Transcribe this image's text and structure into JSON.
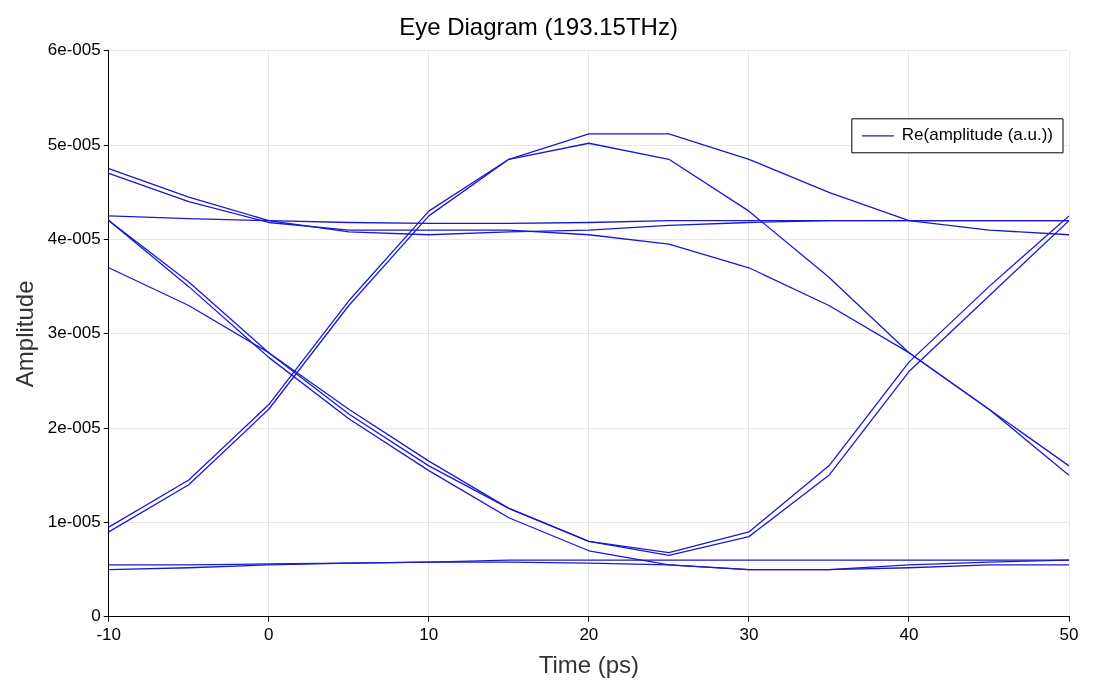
{
  "chart_data": {
    "type": "line",
    "title": "Eye Diagram (193.15THz)",
    "xlabel": "Time (ps)",
    "ylabel": "Amplitude",
    "x": [
      -10,
      -5,
      0,
      5,
      10,
      15,
      20,
      25,
      30,
      35,
      40,
      45,
      50
    ],
    "xlim": [
      -10,
      50
    ],
    "xticks": [
      -10,
      0,
      10,
      20,
      30,
      40,
      50
    ],
    "ylim": [
      0,
      6e-05
    ],
    "yticks": [
      0,
      {
        "value": 1e-05,
        "label": "1e-005"
      },
      {
        "value": 2e-05,
        "label": "2e-005"
      },
      {
        "value": 3e-05,
        "label": "3e-005"
      },
      {
        "value": 4e-05,
        "label": "4e-005"
      },
      {
        "value": 5e-05,
        "label": "5e-005"
      },
      {
        "value": 6e-05,
        "label": "6e-005"
      }
    ],
    "grid": true,
    "legend": "top right",
    "marker": "none",
    "line_style": "solid",
    "series": [
      {
        "name": "Re(amplitude (a.u.))",
        "color": "#1a1acc",
        "values": [
          9e-06,
          1.4e-05,
          2.2e-05,
          3.3e-05,
          4.25e-05,
          4.85e-05,
          5.12e-05,
          5.12e-05,
          4.85e-05,
          4.5e-05,
          4.2e-05,
          4.1e-05,
          4.05e-05
        ]
      },
      {
        "color": "#1a1acc",
        "values": [
          9.5e-06,
          1.45e-05,
          2.25e-05,
          3.35e-05,
          4.3e-05,
          4.85e-05,
          5.02e-05,
          4.85e-05,
          4.3e-05,
          3.6e-05,
          2.8e-05,
          2.2e-05,
          1.5e-05
        ]
      },
      {
        "color": "#1a1acc",
        "values": [
          4.75e-05,
          4.45e-05,
          4.2e-05,
          4.08e-05,
          4.05e-05,
          4.08e-05,
          4.1e-05,
          4.15e-05,
          4.18e-05,
          4.2e-05,
          4.2e-05,
          4.2e-05,
          4.2e-05
        ]
      },
      {
        "color": "#1a1acc",
        "values": [
          4.7e-05,
          4.4e-05,
          4.18e-05,
          4.1e-05,
          4.1e-05,
          4.1e-05,
          4.05e-05,
          3.95e-05,
          3.7e-05,
          3.3e-05,
          2.8e-05,
          2.2e-05,
          1.6e-05
        ]
      },
      {
        "color": "#1a1acc",
        "values": [
          4.25e-05,
          4.22e-05,
          4.2e-05,
          4.18e-05,
          4.17e-05,
          4.17e-05,
          4.18e-05,
          4.2e-05,
          4.2e-05,
          4.2e-05,
          4.2e-05,
          4.2e-05,
          4.2e-05
        ]
      },
      {
        "color": "#1a1acc",
        "values": [
          4.2e-05,
          3.55e-05,
          2.8e-05,
          2.15e-05,
          1.6e-05,
          1.15e-05,
          8e-06,
          6.8e-06,
          9e-06,
          1.6e-05,
          2.7e-05,
          3.5e-05,
          4.25e-05
        ]
      },
      {
        "color": "#1a1acc",
        "values": [
          4.2e-05,
          3.5e-05,
          2.75e-05,
          2.1e-05,
          1.55e-05,
          1.05e-05,
          7e-06,
          5.5e-06,
          5e-06,
          5e-06,
          5.2e-06,
          5.5e-06,
          5.5e-06
        ]
      },
      {
        "color": "#1a1acc",
        "values": [
          3.7e-05,
          3.3e-05,
          2.8e-05,
          2.2e-05,
          1.65e-05,
          1.15e-05,
          8e-06,
          6.5e-06,
          8.5e-06,
          1.5e-05,
          2.6e-05,
          3.4e-05,
          4.2e-05
        ]
      },
      {
        "color": "#1a1acc",
        "values": [
          5.5e-06,
          5.5e-06,
          5.6e-06,
          5.7e-06,
          5.8e-06,
          6e-06,
          6e-06,
          6e-06,
          6e-06,
          6e-06,
          6e-06,
          6e-06,
          6e-06
        ]
      },
      {
        "color": "#1a1acc",
        "values": [
          5e-06,
          5.2e-06,
          5.5e-06,
          5.7e-06,
          5.8e-06,
          5.8e-06,
          5.7e-06,
          5.5e-06,
          5e-06,
          5e-06,
          5.5e-06,
          5.8e-06,
          6e-06
        ]
      }
    ]
  }
}
